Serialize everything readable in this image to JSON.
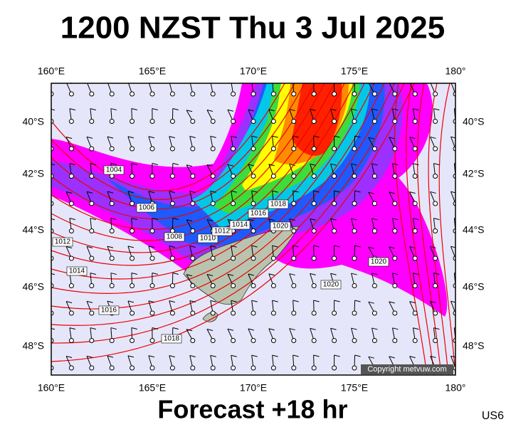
{
  "title": "1200 NZST Thu 3 Jul 2025",
  "footer": "Forecast +18 hr",
  "region": "US6",
  "copyright": "Copyright metvuw.com",
  "lon_labels": [
    "160°E",
    "165°E",
    "170°E",
    "175°E",
    "180°"
  ],
  "lat_labels": [
    "40°S",
    "42°S",
    "44°S",
    "46°S",
    "48°S"
  ],
  "isobar_labels": [
    "1004",
    "1006",
    "1008",
    "1010",
    "1012",
    "1014",
    "1016",
    "1018",
    "1020",
    "1012",
    "1014",
    "1016",
    "1018",
    "1020",
    "1020"
  ]
}
